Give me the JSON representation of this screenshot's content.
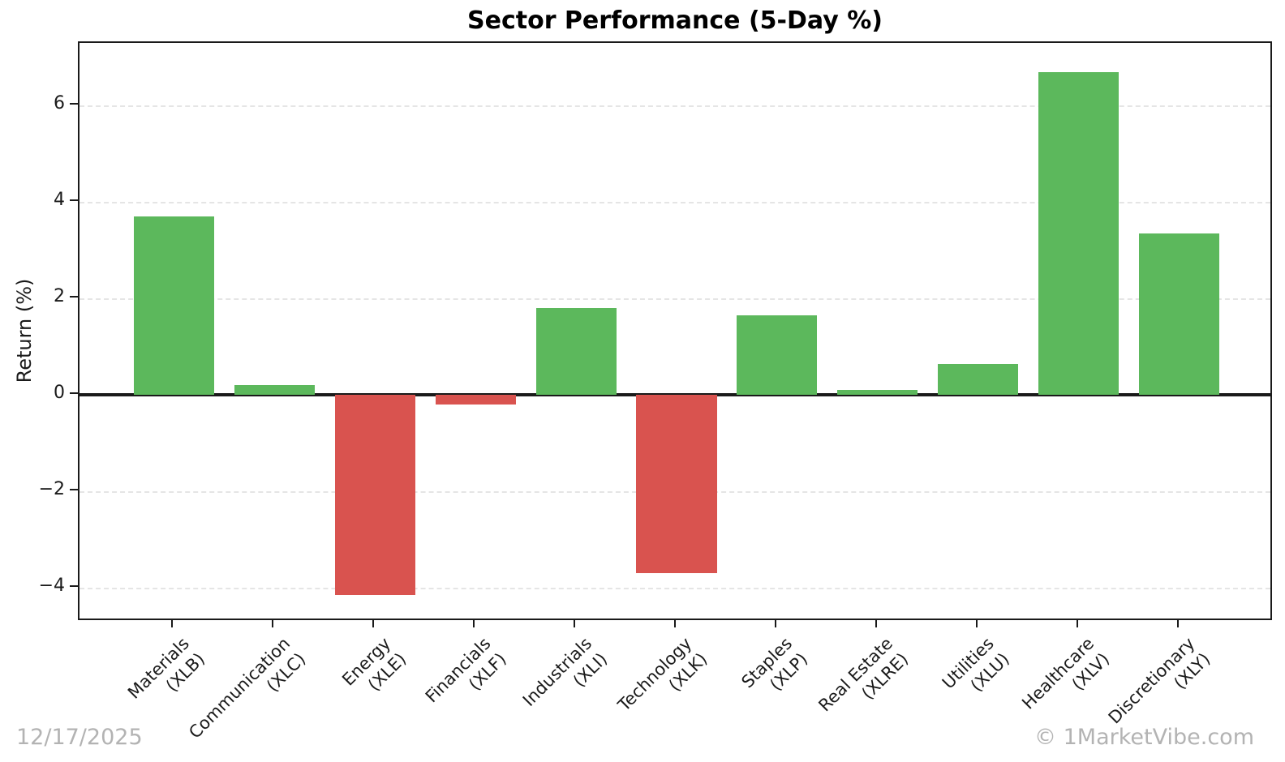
{
  "chart_data": {
    "type": "bar",
    "title": "Sector Performance (5-Day %)",
    "ylabel": "Return (%)",
    "xlabel": "",
    "categories": [
      {
        "sector": "Materials",
        "ticker": "(XLB)"
      },
      {
        "sector": "Communication",
        "ticker": "(XLC)"
      },
      {
        "sector": "Energy",
        "ticker": "(XLE)"
      },
      {
        "sector": "Financials",
        "ticker": "(XLF)"
      },
      {
        "sector": "Industrials",
        "ticker": "(XLI)"
      },
      {
        "sector": "Technology",
        "ticker": "(XLK)"
      },
      {
        "sector": "Staples",
        "ticker": "(XLP)"
      },
      {
        "sector": "Real Estate",
        "ticker": "(XLRE)"
      },
      {
        "sector": "Utilities",
        "ticker": "(XLU)"
      },
      {
        "sector": "Healthcare",
        "ticker": "(XLV)"
      },
      {
        "sector": "Discretionary",
        "ticker": "(XLY)"
      }
    ],
    "values": [
      3.7,
      0.2,
      -4.15,
      -0.2,
      1.8,
      -3.7,
      1.65,
      0.1,
      0.65,
      6.7,
      3.35
    ],
    "yticks": [
      6,
      4,
      2,
      0,
      -2,
      -4
    ],
    "ytick_labels": [
      "6",
      "4",
      "2",
      "0",
      "−2",
      "−4"
    ],
    "ylim": [
      -4.7,
      7.3
    ],
    "grid": "horizontal dashed",
    "legend": "none",
    "colors": {
      "positive": "#5cb85c",
      "negative": "#d9534f",
      "axis": "#1a1a1a",
      "gridline": "#e5e5e5",
      "footer_text": "#b3b3b3"
    }
  },
  "footer": {
    "date": "12/17/2025",
    "watermark": "© 1MarketVibe.com"
  }
}
